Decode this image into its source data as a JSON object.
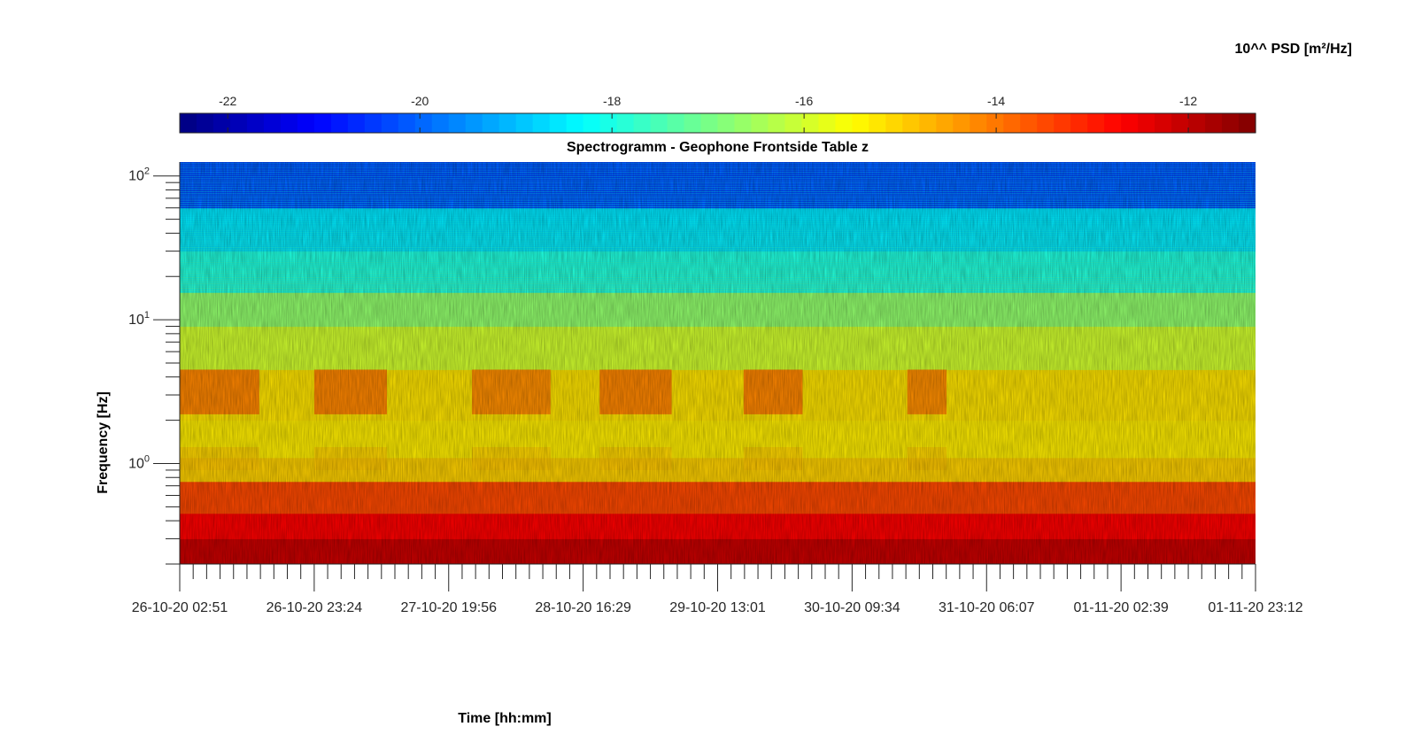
{
  "chart_data": {
    "type": "heatmap",
    "title": "Spectrogramm - Geophone Frontside Table z",
    "xlabel": "Time [hh:mm]",
    "ylabel": "Frequency [Hz]",
    "colorbar": {
      "label": "10^^ PSD [m²/Hz]",
      "ticks": [
        -22,
        -20,
        -18,
        -16,
        -14,
        -12
      ],
      "tick_labels": [
        "-22",
        "-20",
        "-18",
        "-16",
        "-14",
        "-12"
      ],
      "range": [
        -22.5,
        -11.3
      ],
      "colormap": "jet",
      "location": "top"
    },
    "x_ticks": [
      "26-10-20 02:51",
      "26-10-20 23:24",
      "27-10-20 19:56",
      "28-10-20 16:29",
      "29-10-20 13:01",
      "30-10-20 09:34",
      "31-10-20 06:07",
      "01-11-20 02:39",
      "01-11-20 23:12"
    ],
    "y_scale": "log",
    "y_range_hz": [
      0.2,
      125
    ],
    "y_ticks": [
      {
        "value": 1,
        "base": "10",
        "exp": "0"
      },
      {
        "value": 10,
        "base": "10",
        "exp": "1"
      },
      {
        "value": 100,
        "base": "10",
        "exp": "2"
      }
    ],
    "frequency_bands": [
      {
        "f_low": 0.2,
        "f_high": 0.3,
        "log_psd": -12.1
      },
      {
        "f_low": 0.3,
        "f_high": 0.45,
        "log_psd": -12.7
      },
      {
        "f_low": 0.45,
        "f_high": 0.75,
        "log_psd": -13.5
      },
      {
        "f_low": 0.75,
        "f_high": 1.1,
        "log_psd": -15.0
      },
      {
        "f_low": 1.1,
        "f_high": 2.0,
        "log_psd": -15.3
      },
      {
        "f_low": 2.0,
        "f_high": 4.5,
        "log_psd": -15.2
      },
      {
        "f_low": 4.5,
        "f_high": 9.0,
        "log_psd": -16.0
      },
      {
        "f_low": 9.0,
        "f_high": 15.5,
        "log_psd": -16.7
      },
      {
        "f_low": 15.5,
        "f_high": 30,
        "log_psd": -18.0
      },
      {
        "f_low": 30,
        "f_high": 60,
        "log_psd": -18.6
      },
      {
        "f_low": 60,
        "f_high": 125,
        "log_psd": -20.3
      }
    ],
    "activity_periods": [
      {
        "start": "26-10-20 02:51",
        "end": "26-10-20 15:00",
        "f_low": 2.2,
        "f_high": 4.5,
        "log_psd": -14.0
      },
      {
        "start": "26-10-20 23:24",
        "end": "27-10-20 10:30",
        "f_low": 2.2,
        "f_high": 4.5,
        "log_psd": -14.0
      },
      {
        "start": "27-10-20 23:30",
        "end": "28-10-20 11:30",
        "f_low": 2.2,
        "f_high": 4.5,
        "log_psd": -14.1
      },
      {
        "start": "28-10-20 19:00",
        "end": "29-10-20 06:00",
        "f_low": 2.2,
        "f_high": 4.5,
        "log_psd": -14.0
      },
      {
        "start": "29-10-20 17:00",
        "end": "30-10-20 02:00",
        "f_low": 2.2,
        "f_high": 4.5,
        "log_psd": -14.0
      },
      {
        "start": "30-10-20 18:00",
        "end": "31-10-20 00:00",
        "f_low": 2.2,
        "f_high": 4.5,
        "log_psd": -14.1
      }
    ]
  }
}
